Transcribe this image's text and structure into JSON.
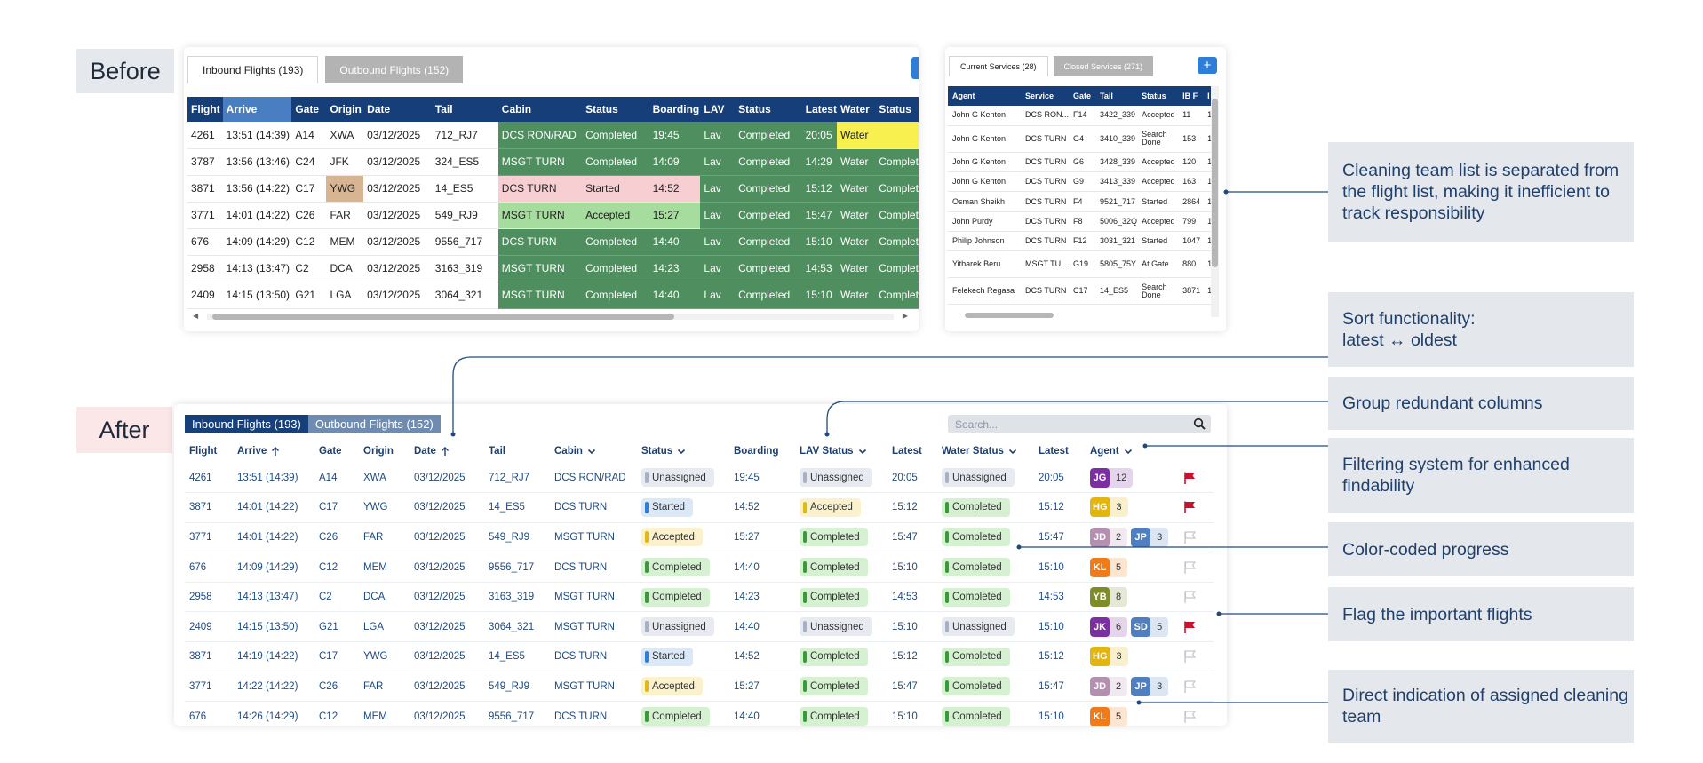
{
  "labels": {
    "before": "Before",
    "after": "After"
  },
  "old_flights": {
    "tabs": [
      {
        "label": "Inbound Flights (193)"
      },
      {
        "label": "Outbound Flights (152)"
      }
    ],
    "columns": [
      "Flight",
      "Arrive",
      "Gate",
      "Origin",
      "Date",
      "Tail",
      "Cabin",
      "Status",
      "Boarding",
      "LAV",
      "Status",
      "Latest",
      "Water",
      "Status"
    ],
    "rows": [
      [
        "4261",
        "13:51 (14:39)",
        "A14",
        "XWA",
        "03/12/2025",
        "712_RJ7",
        "DCS RON/RAD",
        "Completed",
        "19:45",
        "Lav",
        "Completed",
        "20:05",
        "Water",
        ""
      ],
      [
        "3787",
        "13:56 (13:46)",
        "C24",
        "JFK",
        "03/12/2025",
        "324_ES5",
        "MSGT TURN",
        "Completed",
        "14:09",
        "Lav",
        "Completed",
        "14:29",
        "Water",
        "Complet"
      ],
      [
        "3871",
        "13:56 (14:22)",
        "C17",
        "YWG",
        "03/12/2025",
        "14_ES5",
        "DCS TURN",
        "Started",
        "14:52",
        "Lav",
        "Completed",
        "15:12",
        "Water",
        "Complet"
      ],
      [
        "3771",
        "14:01 (14:22)",
        "C26",
        "FAR",
        "03/12/2025",
        "549_RJ9",
        "MSGT TURN",
        "Accepted",
        "15:27",
        "Lav",
        "Completed",
        "15:47",
        "Water",
        "Complet"
      ],
      [
        "676",
        "14:09 (14:29)",
        "C12",
        "MEM",
        "03/12/2025",
        "9556_717",
        "DCS TURN",
        "Completed",
        "14:40",
        "Lav",
        "Completed",
        "15:10",
        "Water",
        "Complet"
      ],
      [
        "2958",
        "14:13 (13:47)",
        "C2",
        "DCA",
        "03/12/2025",
        "3163_319",
        "MSGT TURN",
        "Completed",
        "14:23",
        "Lav",
        "Completed",
        "14:53",
        "Water",
        "Complet"
      ],
      [
        "2409",
        "14:15 (13:50)",
        "G21",
        "LGA",
        "03/12/2025",
        "3064_321",
        "MSGT TURN",
        "Completed",
        "14:40",
        "Lav",
        "Completed",
        "15:10",
        "Water",
        "Complet"
      ]
    ]
  },
  "old_services": {
    "tabs": [
      {
        "label": "Current Services (28)"
      },
      {
        "label": "Closed Services (271)"
      }
    ],
    "plus": "+",
    "columns": [
      "Agent",
      "Service",
      "Gate",
      "Tail",
      "Status",
      "IB F",
      "I"
    ],
    "rows": [
      [
        "John G Kenton",
        "DCS RON...",
        "F14",
        "3422_339",
        "Accepted",
        "11",
        "1"
      ],
      [
        "John G Kenton",
        "DCS TURN",
        "G4",
        "3410_339",
        "Search Done",
        "153",
        "1"
      ],
      [
        "John G Kenton",
        "DCS TURN",
        "G6",
        "3428_339",
        "Accepted",
        "120",
        "1"
      ],
      [
        "John G Kenton",
        "DCS TURN",
        "G9",
        "3413_339",
        "Accepted",
        "163",
        "1"
      ],
      [
        "Osman Sheikh",
        "DCS TURN",
        "F4",
        "9521_717",
        "Started",
        "2864",
        "1"
      ],
      [
        "John Purdy",
        "DCS TURN",
        "F8",
        "5006_32Q",
        "Accepted",
        "799",
        "1"
      ],
      [
        "Philip Johnson",
        "DCS TURN",
        "F12",
        "3031_321",
        "Started",
        "1047",
        "1"
      ],
      [
        "Yitbarek Beru",
        "MSGT TU...",
        "G19",
        "5805_75Y",
        "At Gate",
        "880",
        "1"
      ],
      [
        "Felekech Regasa",
        "DCS TURN",
        "C17",
        "14_ES5",
        "Search Done",
        "3871",
        "1"
      ]
    ]
  },
  "new_flights": {
    "tabs": [
      {
        "label": "Inbound Flights (193)"
      },
      {
        "label": "Outbound Flights (152)"
      }
    ],
    "search_placeholder": "Search...",
    "columns": [
      "Flight",
      "Arrive",
      "Gate",
      "Origin",
      "Date",
      "Tail",
      "Cabin",
      "Status",
      "Boarding",
      "LAV Status",
      "Latest",
      "Water Status",
      "Latest",
      "Agent",
      ""
    ],
    "agent_colors": {
      "JG": "#7b2fa0",
      "HG": "#e2b60f",
      "JD": "#b38fb0",
      "JP": "#4f7fc0",
      "KL": "#ef7b1a",
      "YB": "#7f8b26",
      "JK": "#7b2fa0",
      "SD": "#4f7fc0"
    },
    "rows": [
      {
        "flight": "4261",
        "arrive": "13:51 (14:39)",
        "gate": "A14",
        "origin": "XWA",
        "date": "03/12/2025",
        "tail": "712_RJ7",
        "cabin": "DCS RON/RAD",
        "status": "Unassigned",
        "boarding": "19:45",
        "lav_status": "Unassigned",
        "latest1": "20:05",
        "water_status": "Unassigned",
        "latest2": "20:05",
        "agents": [
          {
            "initials": "JG",
            "count": "12"
          }
        ],
        "flagged": true
      },
      {
        "flight": "3871",
        "arrive": "14:01 (14:22)",
        "gate": "C17",
        "origin": "YWG",
        "date": "03/12/2025",
        "tail": "14_ES5",
        "cabin": "DCS TURN",
        "status": "Started",
        "boarding": "14:52",
        "lav_status": "Accepted",
        "latest1": "15:12",
        "water_status": "Completed",
        "latest2": "15:12",
        "agents": [
          {
            "initials": "HG",
            "count": "3"
          }
        ],
        "flagged": true
      },
      {
        "flight": "3771",
        "arrive": "14:01 (14:22)",
        "gate": "C26",
        "origin": "FAR",
        "date": "03/12/2025",
        "tail": "549_RJ9",
        "cabin": "MSGT TURN",
        "status": "Accepted",
        "boarding": "15:27",
        "lav_status": "Completed",
        "latest1": "15:47",
        "water_status": "Completed",
        "latest2": "15:47",
        "agents": [
          {
            "initials": "JD",
            "count": "2"
          },
          {
            "initials": "JP",
            "count": "3"
          }
        ],
        "flagged": false
      },
      {
        "flight": "676",
        "arrive": "14:09 (14:29)",
        "gate": "C12",
        "origin": "MEM",
        "date": "03/12/2025",
        "tail": "9556_717",
        "cabin": "DCS TURN",
        "status": "Completed",
        "boarding": "14:40",
        "lav_status": "Completed",
        "latest1": "15:10",
        "water_status": "Completed",
        "latest2": "15:10",
        "agents": [
          {
            "initials": "KL",
            "count": "5"
          }
        ],
        "flagged": false
      },
      {
        "flight": "2958",
        "arrive": "14:13 (13:47)",
        "gate": "C2",
        "origin": "DCA",
        "date": "03/12/2025",
        "tail": "3163_319",
        "cabin": "MSGT TURN",
        "status": "Completed",
        "boarding": "14:23",
        "lav_status": "Completed",
        "latest1": "14:53",
        "water_status": "Completed",
        "latest2": "14:53",
        "agents": [
          {
            "initials": "YB",
            "count": "8"
          }
        ],
        "flagged": false
      },
      {
        "flight": "2409",
        "arrive": "14:15 (13:50)",
        "gate": "G21",
        "origin": "LGA",
        "date": "03/12/2025",
        "tail": "3064_321",
        "cabin": "MSGT TURN",
        "status": "Unassigned",
        "boarding": "14:40",
        "lav_status": "Unassigned",
        "latest1": "15:10",
        "water_status": "Unassigned",
        "latest2": "15:10",
        "agents": [
          {
            "initials": "JK",
            "count": "6"
          },
          {
            "initials": "SD",
            "count": "5"
          }
        ],
        "flagged": true
      },
      {
        "flight": "3871",
        "arrive": "14:19 (14:22)",
        "gate": "C17",
        "origin": "YWG",
        "date": "03/12/2025",
        "tail": "14_ES5",
        "cabin": "DCS TURN",
        "status": "Started",
        "boarding": "14:52",
        "lav_status": "Completed",
        "latest1": "15:12",
        "water_status": "Completed",
        "latest2": "15:12",
        "agents": [
          {
            "initials": "HG",
            "count": "3"
          }
        ],
        "flagged": false
      },
      {
        "flight": "3771",
        "arrive": "14:22 (14:22)",
        "gate": "C26",
        "origin": "FAR",
        "date": "03/12/2025",
        "tail": "549_RJ9",
        "cabin": "MSGT TURN",
        "status": "Accepted",
        "boarding": "15:27",
        "lav_status": "Completed",
        "latest1": "15:47",
        "water_status": "Completed",
        "latest2": "15:47",
        "agents": [
          {
            "initials": "JD",
            "count": "2"
          },
          {
            "initials": "JP",
            "count": "3"
          }
        ],
        "flagged": false
      },
      {
        "flight": "676",
        "arrive": "14:26 (14:29)",
        "gate": "C12",
        "origin": "MEM",
        "date": "03/12/2025",
        "tail": "9556_717",
        "cabin": "DCS TURN",
        "status": "Completed",
        "boarding": "14:40",
        "lav_status": "Completed",
        "latest1": "15:10",
        "water_status": "Completed",
        "latest2": "15:10",
        "agents": [
          {
            "initials": "KL",
            "count": "5"
          }
        ],
        "flagged": false
      }
    ]
  },
  "annotations": [
    "Cleaning team list is separated from the flight list, making it inefficient to track responsibility",
    "Sort functionality:\nlatest ↔ oldest",
    "Group redundant columns",
    "Filtering system for enhanced findability",
    "Color-coded progress",
    "Flag the important flights",
    "Direct indication of assigned cleaning team"
  ],
  "colors": {
    "navy": "#163e79",
    "flag_red": "#c9102d",
    "connector": "#1f4a80"
  }
}
